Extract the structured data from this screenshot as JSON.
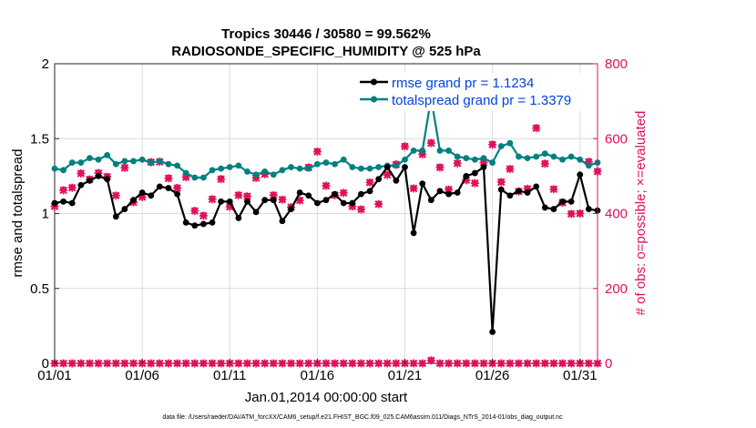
{
  "chart_data": {
    "type": "line",
    "title_line1": "Tropics 30446 / 30580 = 99.562%",
    "title_line2": "RADIOSONDE_SPECIFIC_HUMIDITY @ 525 hPa",
    "xlabel": "Jan.01,2014 00:00:00 start",
    "ylabel_left": "rmse and totalspread",
    "ylabel_right": "# of obs: o=possible; ×=evaluated",
    "footer": "data file: /Users/raeder/DAI/ATM_forcXX/CAM6_setup/f.e21.FHIST_BGC.f09_025.CAM6assim.011/Diags_NTrS_2014-01/obs_diag_output.nc",
    "xlim": [
      1,
      32
    ],
    "ylim_left": [
      0,
      2
    ],
    "ylim_right": [
      0,
      800
    ],
    "x_ticks": [
      1,
      6,
      11,
      16,
      21,
      26,
      31
    ],
    "x_tick_labels": [
      "01/01",
      "01/06",
      "01/11",
      "01/16",
      "01/21",
      "01/26",
      "01/31"
    ],
    "y_left_ticks": [
      0,
      0.5,
      1,
      1.5,
      2
    ],
    "y_left_tick_labels": [
      "0",
      "0.5",
      "1",
      "1.5",
      "2"
    ],
    "y_right_ticks": [
      0,
      200,
      400,
      600,
      800
    ],
    "y_right_tick_labels": [
      "0",
      "200",
      "400",
      "600",
      "800"
    ],
    "grid": true,
    "legend_position": "top-right",
    "legend": [
      "rmse grand pr = 1.1234",
      "totalspread grand pr = 1.3379"
    ],
    "colors": {
      "rmse": "#000000",
      "totalspread": "#008080",
      "obs": "#e0105a",
      "title": "#000000",
      "legend_text": "#0044dd"
    },
    "series": [
      {
        "name": "rmse",
        "axis": "left",
        "values": [
          1.07,
          1.08,
          1.07,
          1.19,
          1.22,
          1.25,
          1.23,
          0.98,
          1.03,
          1.09,
          1.14,
          1.12,
          1.18,
          1.17,
          1.13,
          0.94,
          0.92,
          0.93,
          0.94,
          1.08,
          1.08,
          0.97,
          1.08,
          1.01,
          1.09,
          1.09,
          0.95,
          1.03,
          1.14,
          1.12,
          1.07,
          1.09,
          1.13,
          1.07,
          1.07,
          1.13,
          1.15,
          1.23,
          1.31,
          1.22,
          1.31,
          0.87,
          1.2,
          1.09,
          1.15,
          1.13,
          1.14,
          1.25,
          1.27,
          1.31,
          0.21,
          1.16,
          1.12,
          1.15,
          1.14,
          1.18,
          1.04,
          1.03,
          1.08,
          1.08,
          1.26,
          1.03,
          1.02
        ]
      },
      {
        "name": "totalspread",
        "axis": "left",
        "values": [
          1.3,
          1.29,
          1.34,
          1.34,
          1.37,
          1.36,
          1.39,
          1.33,
          1.35,
          1.35,
          1.36,
          1.34,
          1.35,
          1.33,
          1.32,
          1.27,
          1.24,
          1.24,
          1.29,
          1.3,
          1.31,
          1.32,
          1.28,
          1.26,
          1.28,
          1.26,
          1.29,
          1.31,
          1.3,
          1.3,
          1.33,
          1.34,
          1.33,
          1.36,
          1.31,
          1.3,
          1.3,
          1.31,
          1.32,
          1.32,
          1.36,
          1.42,
          1.42,
          1.77,
          1.42,
          1.42,
          1.38,
          1.37,
          1.36,
          1.37,
          1.34,
          1.45,
          1.47,
          1.38,
          1.37,
          1.38,
          1.4,
          1.38,
          1.36,
          1.38,
          1.36,
          1.32,
          1.34
        ]
      },
      {
        "name": "obs_possible",
        "axis": "right",
        "values": [
          421,
          464,
          470,
          508,
          493,
          510,
          500,
          449,
          524,
          431,
          445,
          539,
          540,
          496,
          470,
          498,
          409,
          396,
          440,
          494,
          420,
          450,
          447,
          497,
          506,
          450,
          438,
          418,
          436,
          525,
          567,
          475,
          450,
          456,
          420,
          412,
          484,
          426,
          505,
          533,
          581,
          468,
          560,
          590,
          525,
          465,
          535,
          490,
          482,
          537,
          586,
          485,
          520,
          460,
          467,
          630,
          535,
          466,
          430,
          400,
          401,
          540,
          514
        ]
      },
      {
        "name": "obs_evaluated",
        "axis": "right",
        "values": [
          419,
          462,
          469,
          507,
          491,
          508,
          498,
          448,
          522,
          430,
          444,
          537,
          538,
          494,
          468,
          497,
          407,
          394,
          438,
          492,
          418,
          449,
          446,
          495,
          505,
          449,
          437,
          417,
          435,
          523,
          565,
          474,
          449,
          455,
          419,
          411,
          483,
          425,
          503,
          531,
          579,
          467,
          558,
          588,
          523,
          464,
          534,
          489,
          481,
          536,
          584,
          484,
          519,
          459,
          466,
          628,
          533,
          465,
          429,
          399,
          400,
          538,
          512
        ]
      },
      {
        "name": "obs_rejected",
        "axis": "right",
        "values": [
          0,
          0,
          0,
          0,
          0,
          0,
          0,
          0,
          0,
          0,
          0,
          0,
          0,
          0,
          0,
          0,
          0,
          0,
          0,
          0,
          0,
          0,
          0,
          0,
          0,
          0,
          0,
          0,
          0,
          0,
          0,
          0,
          0,
          0,
          0,
          0,
          0,
          0,
          0,
          0,
          0,
          0,
          0,
          8,
          0,
          0,
          0,
          0,
          0,
          0,
          0,
          0,
          0,
          0,
          0,
          0,
          0,
          0,
          0,
          0,
          0,
          0,
          0
        ]
      }
    ]
  }
}
